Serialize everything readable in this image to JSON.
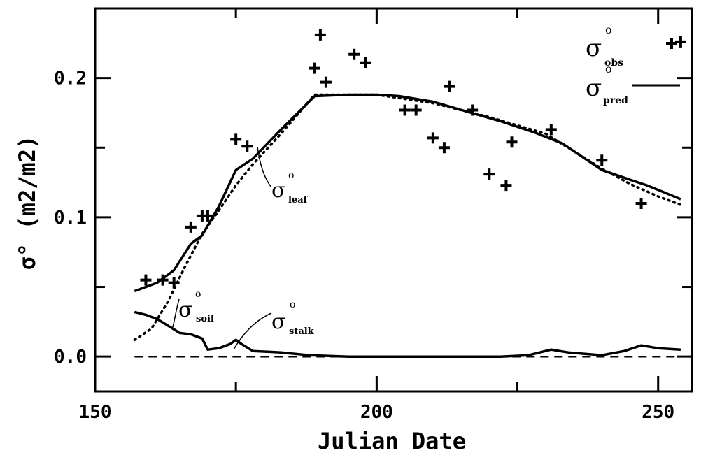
{
  "chart_data": {
    "type": "line",
    "title": "",
    "xlabel": "Julian Date",
    "ylabel": "σ°  (m2/m2)",
    "xlim": [
      150,
      256
    ],
    "ylim": [
      -0.025,
      0.25
    ],
    "xticks": [
      150,
      200,
      250
    ],
    "yticks": [
      0.0,
      0.1,
      0.2
    ],
    "xtick_labels": [
      "150",
      "200",
      "250"
    ],
    "ytick_labels": [
      "0.0",
      "0.1",
      "0.2"
    ],
    "grid": false,
    "legend_position": "top-right",
    "legend": [
      {
        "symbol": "σ",
        "sub": "obs",
        "sup": "o",
        "marker": "plus"
      },
      {
        "symbol": "σ",
        "sub": "pred",
        "sup": "o",
        "marker": "solid-line"
      }
    ],
    "annotations": [
      {
        "symbol": "σ",
        "sub": "leaf",
        "sup": "o"
      },
      {
        "symbol": "σ",
        "sub": "soil",
        "sup": "o"
      },
      {
        "symbol": "σ",
        "sub": "stalk",
        "sup": "o"
      }
    ],
    "series": [
      {
        "name": "σ°pred",
        "style": "solid",
        "x": [
          157,
          161,
          164,
          167,
          169,
          172,
          175,
          178,
          183,
          189,
          195,
          200,
          204,
          210,
          216,
          222,
          228,
          233,
          240,
          245,
          248,
          251,
          254
        ],
        "y": [
          0.047,
          0.053,
          0.062,
          0.081,
          0.087,
          0.108,
          0.134,
          0.142,
          0.163,
          0.187,
          0.188,
          0.188,
          0.187,
          0.183,
          0.176,
          0.169,
          0.161,
          0.153,
          0.134,
          0.127,
          0.123,
          0.118,
          0.113
        ]
      },
      {
        "name": "σ°leaf",
        "style": "dotted",
        "x": [
          157,
          160,
          163,
          166,
          169,
          172,
          175,
          178,
          183,
          189,
          195,
          200,
          210,
          220,
          230,
          240,
          245,
          250,
          254
        ],
        "y": [
          0.012,
          0.02,
          0.04,
          0.065,
          0.088,
          0.105,
          0.123,
          0.138,
          0.16,
          0.188,
          0.188,
          0.188,
          0.182,
          0.172,
          0.16,
          0.135,
          0.124,
          0.115,
          0.109
        ]
      },
      {
        "name": "σ°soil",
        "style": "solid",
        "x": [
          157,
          159,
          161,
          163,
          165,
          167,
          169,
          170,
          172,
          174,
          175,
          176,
          178,
          183,
          188,
          195,
          205,
          215,
          222,
          227,
          231,
          234,
          240,
          244,
          247,
          250,
          254
        ],
        "y": [
          0.032,
          0.03,
          0.027,
          0.022,
          0.017,
          0.016,
          0.013,
          0.005,
          0.006,
          0.009,
          0.012,
          0.009,
          0.004,
          0.003,
          0.001,
          0.0,
          0.0,
          0.0,
          0.0,
          0.001,
          0.005,
          0.003,
          0.001,
          0.004,
          0.008,
          0.006,
          0.005
        ]
      },
      {
        "name": "σ°stalk",
        "style": "dashed",
        "x": [
          157,
          254
        ],
        "y": [
          0.0,
          0.0
        ]
      },
      {
        "name": "σ°obs",
        "style": "markers",
        "x": [
          159,
          162,
          164,
          167,
          169,
          170,
          175,
          177,
          189,
          190,
          191,
          196,
          198,
          205,
          207,
          210,
          212,
          213,
          217,
          220,
          223,
          224,
          231,
          240,
          247,
          254
        ],
        "y": [
          0.055,
          0.055,
          0.053,
          0.093,
          0.101,
          0.101,
          0.156,
          0.151,
          0.207,
          0.231,
          0.197,
          0.217,
          0.211,
          0.177,
          0.177,
          0.157,
          0.15,
          0.194,
          0.177,
          0.131,
          0.123,
          0.154,
          0.163,
          0.141,
          0.11,
          0.226
        ]
      }
    ]
  }
}
